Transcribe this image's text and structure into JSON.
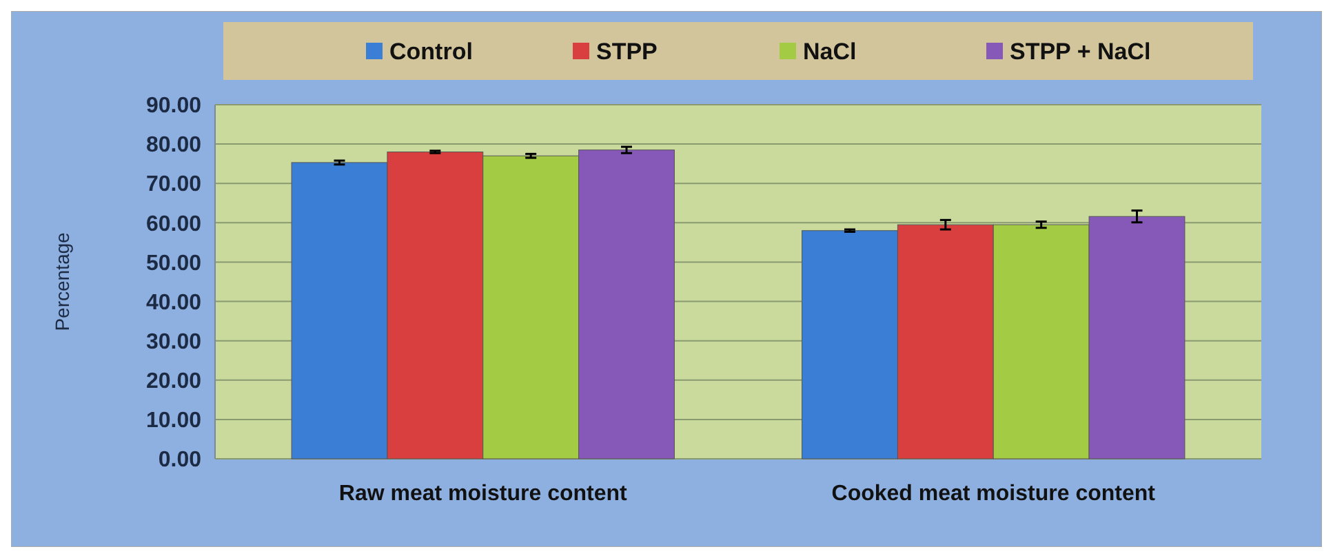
{
  "chart_data": {
    "type": "bar",
    "ylabel": "Percentage",
    "categories": [
      "Raw meat moisture content",
      "Cooked meat moisture content"
    ],
    "series": [
      {
        "name": "Control",
        "color": "#3a7fd5",
        "values": [
          75.3,
          58.0
        ],
        "errors": [
          0.5,
          0.3
        ]
      },
      {
        "name": "STPP",
        "color": "#d93f3f",
        "values": [
          78.0,
          59.5
        ],
        "errors": [
          0.3,
          1.2
        ]
      },
      {
        "name": "NaCl",
        "color": "#a3cc44",
        "values": [
          77.0,
          59.5
        ],
        "errors": [
          0.5,
          0.8
        ]
      },
      {
        "name": "STPP + NaCl",
        "color": "#8658b8",
        "values": [
          78.5,
          61.6
        ],
        "errors": [
          0.8,
          1.5
        ]
      }
    ],
    "ylim": [
      0,
      90
    ],
    "yticks": [
      {
        "value": 0,
        "label": "0.00"
      },
      {
        "value": 10,
        "label": "10.00"
      },
      {
        "value": 20,
        "label": "20.00"
      },
      {
        "value": 30,
        "label": "30.00"
      },
      {
        "value": 40,
        "label": "40.00"
      },
      {
        "value": 50,
        "label": "50.00"
      },
      {
        "value": 60,
        "label": "60.00"
      },
      {
        "value": 70,
        "label": "70.00"
      },
      {
        "value": 80,
        "label": "80.00"
      },
      {
        "value": 90,
        "label": "90.00"
      }
    ],
    "grid": "y",
    "legend": "top"
  }
}
